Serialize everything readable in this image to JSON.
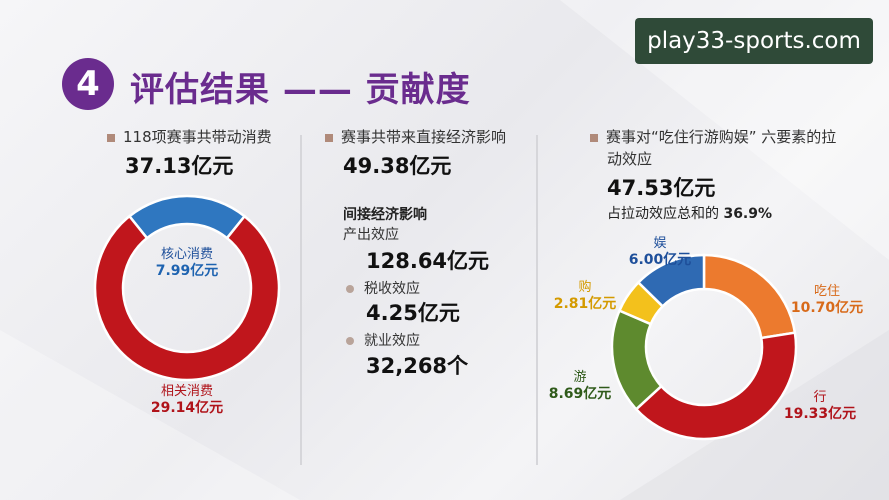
{
  "watermark": "play33-sports.com",
  "header": {
    "badge": "4",
    "title": "评估结果 —— 贡献度"
  },
  "col1": {
    "label": "118项赛事共带动消费",
    "total": "37.13亿元"
  },
  "col2": {
    "label": "赛事共带来直接经济影响",
    "direct": "49.38亿元",
    "indirect_title": "间接经济影响",
    "output_label": "产出效应",
    "output_value": "128.64亿元",
    "tax_label": "税收效应",
    "tax_value": "4.25亿元",
    "job_label": "就业效应",
    "job_value": "32,268个"
  },
  "col3": {
    "label_line1": "赛事对“吃住行游购娱” 六要素的拉",
    "label_line2": "动效应",
    "total": "47.53亿元",
    "share_text": "占拉动效应总和的",
    "share_value": "36.9%"
  },
  "chart_data": [
    {
      "type": "pie",
      "title": "",
      "categories": [
        "核心消费",
        "相关消费"
      ],
      "values": [
        7.99,
        29.14
      ],
      "value_labels": [
        "7.99亿元",
        "29.14亿元"
      ],
      "colors": [
        "#2f77c0",
        "#c0161c"
      ],
      "label_colors": [
        "#1e63b0",
        "#b0131a"
      ]
    },
    {
      "type": "pie",
      "title": "",
      "categories": [
        "吃住",
        "行",
        "游",
        "购",
        "娱"
      ],
      "values": [
        10.7,
        19.33,
        8.69,
        2.81,
        6.0
      ],
      "value_labels": [
        "10.70亿元",
        "19.33亿元",
        "8.69亿元",
        "2.81亿元",
        "6.00亿元"
      ],
      "colors": [
        "#ec7a2e",
        "#c0161c",
        "#5e8a2e",
        "#f3c11c",
        "#2f6ab3"
      ],
      "label_colors": [
        "#d86a1a",
        "#b0131a",
        "#2f5a1a",
        "#d49a00",
        "#1e4f9a"
      ]
    }
  ]
}
